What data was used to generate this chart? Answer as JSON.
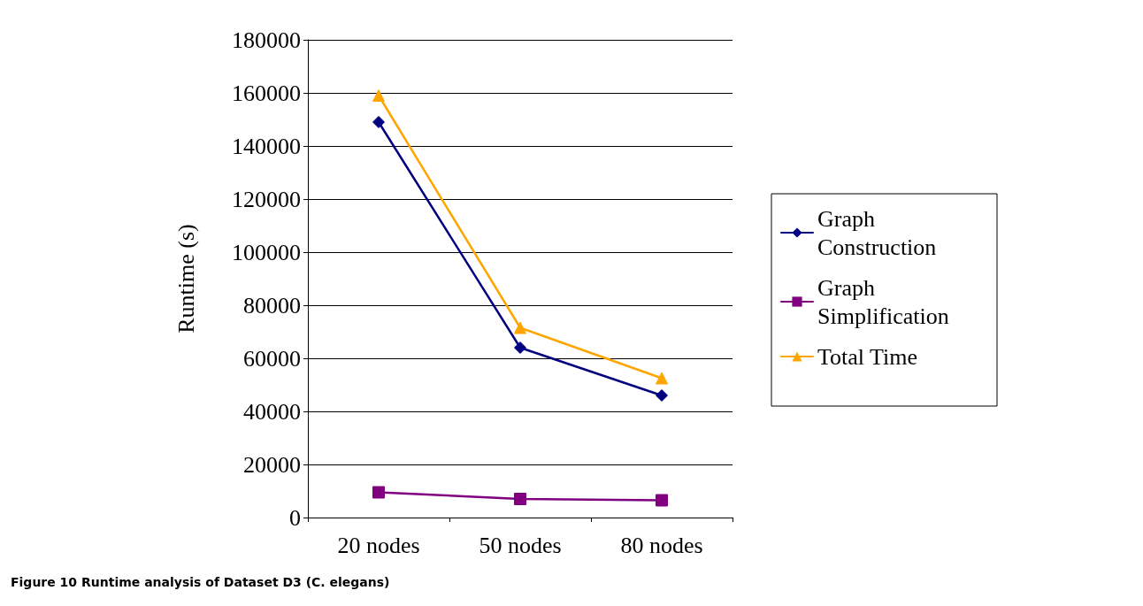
{
  "chart_data": {
    "type": "line",
    "ylabel": "Runtime (s)",
    "categories": [
      "20 nodes",
      "50 nodes",
      "80 nodes"
    ],
    "series": [
      {
        "name": "Graph Construction",
        "color": "#000080",
        "marker": "diamond",
        "values": [
          149000,
          64000,
          46000
        ]
      },
      {
        "name": "Graph Simplification",
        "color": "#800080",
        "marker": "square",
        "values": [
          9500,
          7000,
          6500
        ]
      },
      {
        "name": "Total Time",
        "color": "#ffa500",
        "marker": "triangle",
        "values": [
          159000,
          71500,
          52500
        ]
      }
    ],
    "ylim": [
      0,
      180000
    ],
    "yticks": [
      0,
      20000,
      40000,
      60000,
      80000,
      100000,
      120000,
      140000,
      160000,
      180000
    ],
    "grid": "y",
    "legend": "right",
    "line_style": "solid",
    "annotations": [
      "Figure 10 Runtime analysis of Dataset D3 (C. elegans)"
    ]
  }
}
